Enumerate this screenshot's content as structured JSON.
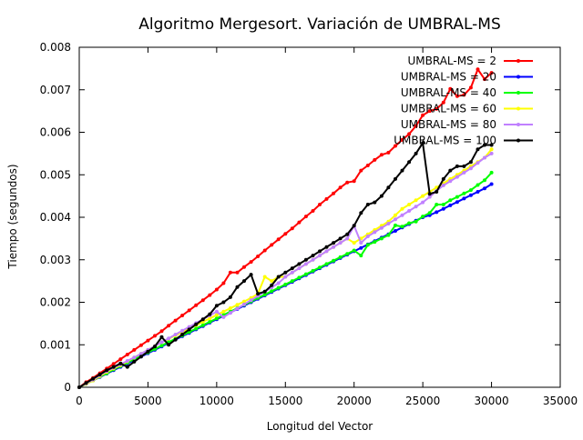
{
  "chart_data": {
    "type": "line",
    "title": "Algoritmo Mergesort. Variación de UMBRAL-MS",
    "xlabel": "Longitud del Vector",
    "ylabel": "Tiempo (segundos)",
    "xlim": [
      0,
      35000
    ],
    "ylim": [
      0,
      0.008
    ],
    "x_ticks": [
      0,
      5000,
      10000,
      15000,
      20000,
      25000,
      30000,
      35000
    ],
    "y_ticks": [
      0,
      0.001,
      0.002,
      0.003,
      0.004,
      0.005,
      0.006,
      0.007,
      0.008
    ],
    "x_tick_labels": [
      "0",
      "5000",
      "10000",
      "15000",
      "20000",
      "25000",
      "30000",
      "35000"
    ],
    "y_tick_labels": [
      "0",
      "0.001",
      "0.002",
      "0.003",
      "0.004",
      "0.005",
      "0.006",
      "0.007",
      "0.008"
    ],
    "grid": false,
    "legend_position": "top-right",
    "x": [
      0,
      500,
      1000,
      1500,
      2000,
      2500,
      3000,
      3500,
      4000,
      4500,
      5000,
      5500,
      6000,
      6500,
      7000,
      7500,
      8000,
      8500,
      9000,
      9500,
      10000,
      10500,
      11000,
      11500,
      12000,
      12500,
      13000,
      13500,
      14000,
      14500,
      15000,
      15500,
      16000,
      16500,
      17000,
      17500,
      18000,
      18500,
      19000,
      19500,
      20000,
      20500,
      21000,
      21500,
      22000,
      22500,
      23000,
      23500,
      24000,
      24500,
      25000,
      25500,
      26000,
      26500,
      27000,
      27500,
      28000,
      28500,
      29000,
      29500,
      30000
    ],
    "series": [
      {
        "name": "UMBRAL-MS = 2",
        "color": "#ff0000",
        "values": [
          0.0,
          0.00012,
          0.00022,
          0.00033,
          0.00044,
          0.00055,
          0.00066,
          0.00077,
          0.00088,
          0.00099,
          0.0011,
          0.00121,
          0.00132,
          0.00145,
          0.00157,
          0.00169,
          0.00181,
          0.00193,
          0.00205,
          0.00217,
          0.0023,
          0.00245,
          0.0027,
          0.0027,
          0.00283,
          0.00295,
          0.00308,
          0.00322,
          0.00335,
          0.00348,
          0.00361,
          0.00374,
          0.00388,
          0.00402,
          0.00415,
          0.0043,
          0.00443,
          0.00456,
          0.0047,
          0.00482,
          0.00485,
          0.0051,
          0.00522,
          0.00535,
          0.00547,
          0.00552,
          0.00568,
          0.00582,
          0.00596,
          0.00615,
          0.0064,
          0.0065,
          0.00655,
          0.0067,
          0.00702,
          0.00685,
          0.00688,
          0.00705,
          0.00748,
          0.00725,
          0.0074
        ]
      },
      {
        "name": "UMBRAL-MS = 20",
        "color": "#0000ff",
        "values": [
          0.0,
          8e-05,
          0.00016,
          0.00024,
          0.00032,
          0.0004,
          0.00048,
          0.00056,
          0.00064,
          0.00072,
          0.0008,
          0.00088,
          0.00096,
          0.00104,
          0.00112,
          0.0012,
          0.00128,
          0.00136,
          0.00144,
          0.00152,
          0.0016,
          0.00168,
          0.00176,
          0.00184,
          0.00192,
          0.002,
          0.00208,
          0.00216,
          0.00224,
          0.00232,
          0.0024,
          0.00248,
          0.00256,
          0.00264,
          0.00272,
          0.0028,
          0.00288,
          0.00296,
          0.00304,
          0.00312,
          0.0032,
          0.00328,
          0.00336,
          0.00344,
          0.00352,
          0.0036,
          0.00368,
          0.00376,
          0.00384,
          0.00392,
          0.004,
          0.00405,
          0.00412,
          0.0042,
          0.00428,
          0.00436,
          0.00444,
          0.00452,
          0.0046,
          0.00468,
          0.00478
        ]
      },
      {
        "name": "UMBRAL-MS = 40",
        "color": "#00ff00",
        "values": [
          0.0,
          8e-05,
          0.00016,
          0.00025,
          0.00033,
          0.00042,
          0.0005,
          0.00058,
          0.00066,
          0.00074,
          0.00082,
          0.0009,
          0.00098,
          0.00106,
          0.00114,
          0.00122,
          0.0013,
          0.00138,
          0.00146,
          0.00154,
          0.00162,
          0.0017,
          0.00178,
          0.00186,
          0.00194,
          0.00202,
          0.0021,
          0.00218,
          0.00226,
          0.00234,
          0.00242,
          0.0025,
          0.00258,
          0.00266,
          0.00274,
          0.00282,
          0.0029,
          0.00298,
          0.00306,
          0.00314,
          0.00322,
          0.0031,
          0.00335,
          0.00342,
          0.0035,
          0.00358,
          0.00381,
          0.00378,
          0.00386,
          0.0039,
          0.00402,
          0.0041,
          0.0043,
          0.0043,
          0.0044,
          0.00448,
          0.00456,
          0.00464,
          0.00476,
          0.00487,
          0.00505
        ]
      },
      {
        "name": "UMBRAL-MS = 60",
        "color": "#ffff00",
        "values": [
          0.0,
          8e-05,
          0.00016,
          0.00026,
          0.00036,
          0.00044,
          0.00052,
          0.00061,
          0.0007,
          0.00079,
          0.00088,
          0.00097,
          0.00106,
          0.00114,
          0.00122,
          0.0013,
          0.00138,
          0.00146,
          0.00154,
          0.00162,
          0.0017,
          0.00178,
          0.00186,
          0.00194,
          0.00202,
          0.0021,
          0.0022,
          0.0026,
          0.0025,
          0.0026,
          0.0026,
          0.0027,
          0.0028,
          0.0029,
          0.003,
          0.0031,
          0.0032,
          0.0033,
          0.0034,
          0.0035,
          0.0034,
          0.0035,
          0.0036,
          0.0037,
          0.0038,
          0.0039,
          0.00405,
          0.0042,
          0.0043,
          0.0044,
          0.0045,
          0.0046,
          0.0047,
          0.0048,
          0.0049,
          0.005,
          0.0051,
          0.0052,
          0.0053,
          0.0054,
          0.0056
        ]
      },
      {
        "name": "UMBRAL-MS = 80",
        "color": "#c080ff",
        "values": [
          0.0,
          9e-05,
          0.00018,
          0.00028,
          0.00038,
          0.00046,
          0.00054,
          0.00062,
          0.0007,
          0.00079,
          0.00088,
          0.00097,
          0.00106,
          0.00115,
          0.00124,
          0.00133,
          0.00142,
          0.00151,
          0.0016,
          0.00169,
          0.00178,
          0.00165,
          0.00175,
          0.00185,
          0.00195,
          0.00205,
          0.00215,
          0.00225,
          0.00235,
          0.00245,
          0.0026,
          0.0027,
          0.0028,
          0.0029,
          0.003,
          0.0031,
          0.0032,
          0.0033,
          0.0034,
          0.0035,
          0.0038,
          0.0034,
          0.00355,
          0.00365,
          0.00375,
          0.00385,
          0.00395,
          0.00405,
          0.00415,
          0.00425,
          0.00435,
          0.00448,
          0.00462,
          0.00475,
          0.00485,
          0.00495,
          0.00505,
          0.00515,
          0.00528,
          0.0054,
          0.0055
        ]
      },
      {
        "name": "UMBRAL-MS = 100",
        "color": "#000000",
        "values": [
          0.0,
          0.0001,
          0.0002,
          0.0003,
          0.0004,
          0.00048,
          0.00056,
          0.00048,
          0.0006,
          0.00072,
          0.00084,
          0.00096,
          0.00118,
          0.001,
          0.00112,
          0.00124,
          0.00136,
          0.00148,
          0.0016,
          0.00172,
          0.00192,
          0.002,
          0.00212,
          0.00236,
          0.0025,
          0.00265,
          0.0022,
          0.00225,
          0.0024,
          0.0026,
          0.0027,
          0.0028,
          0.0029,
          0.003,
          0.0031,
          0.0032,
          0.0033,
          0.0034,
          0.0035,
          0.0036,
          0.0038,
          0.0041,
          0.0043,
          0.00435,
          0.0045,
          0.0047,
          0.0049,
          0.0051,
          0.0053,
          0.0055,
          0.00575,
          0.00455,
          0.0046,
          0.0049,
          0.0051,
          0.0052,
          0.0052,
          0.0053,
          0.0056,
          0.0057,
          0.0057
        ]
      }
    ]
  }
}
